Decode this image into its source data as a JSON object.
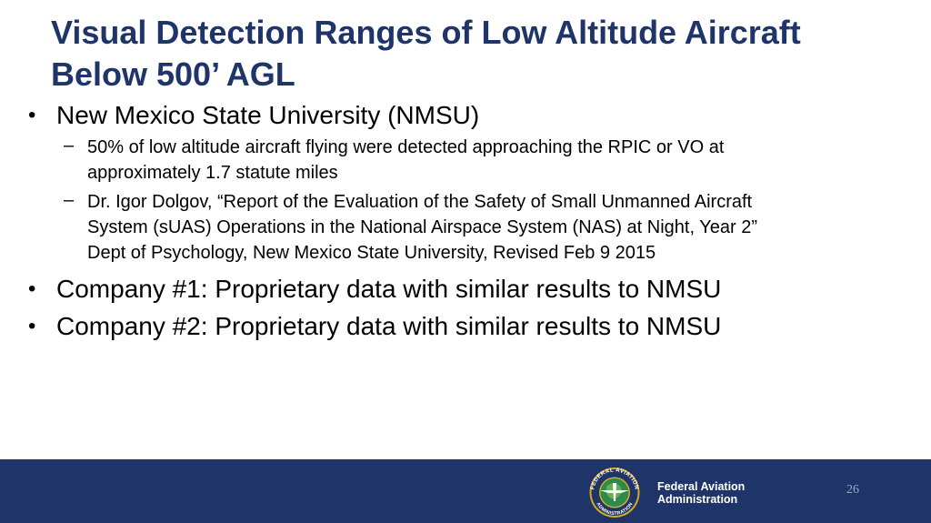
{
  "title": {
    "line1": "Visual Detection Ranges of Low Altitude Aircraft",
    "line2": "Below 500’ AGL"
  },
  "bullets": [
    {
      "text": "New Mexico State University (NMSU)",
      "subitems": [
        {
          "lines": [
            "50% of low altitude aircraft flying were detected approaching the RPIC or VO at",
            "approximately 1.7 statute miles"
          ]
        },
        {
          "lines": [
            "Dr. Igor Dolgov, “Report of the Evaluation of the Safety of Small Unmanned Aircraft",
            "System (sUAS) Operations in the National Airspace System (NAS) at Night, Year 2”",
            "Dept of Psychology, New Mexico State University, Revised Feb 9 2015"
          ]
        }
      ]
    },
    {
      "text": "Company #1: Proprietary data with similar results to NMSU"
    },
    {
      "text": "Company #2: Proprietary data with similar results to NMSU"
    }
  ],
  "bullet_glyph": "•",
  "dash_glyph": "–",
  "footer": {
    "agency_line1": "Federal Aviation",
    "agency_line2": "Administration",
    "page_number": "26",
    "seal_text": "FEDERAL AVIATION ADMINISTRATION",
    "colors": {
      "band": "#1f3468",
      "title": "#1f3468",
      "seal_gold": "#d9a821"
    }
  }
}
